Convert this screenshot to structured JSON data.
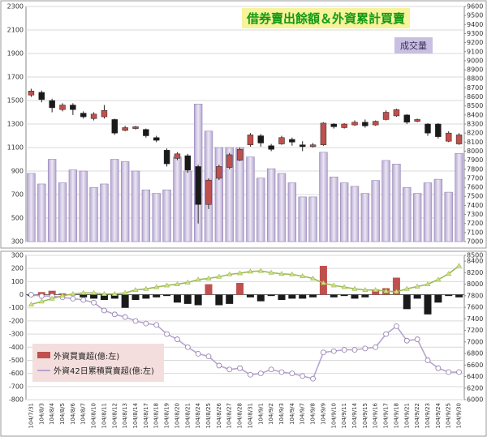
{
  "chart_data": [
    {
      "type": "candlestick",
      "title": "借券賣出餘額＆外資累計買賣",
      "annotation": "成交量",
      "volume": {
        "color": "#cdc2e0",
        "values": [
          880,
          790,
          1000,
          800,
          910,
          900,
          760,
          790,
          1000,
          980,
          900,
          740,
          710,
          740,
          1020,
          900,
          1470,
          1240,
          1100,
          1100,
          1100,
          1020,
          840,
          920,
          880,
          800,
          680,
          680,
          1060,
          850,
          800,
          770,
          710,
          820,
          990,
          960,
          760,
          710,
          800,
          830,
          720,
          1050
        ]
      },
      "candles": {
        "axis": "y2",
        "up_color": "#c0504d",
        "down_color": "#1a1a1a",
        "open": [
          8620,
          8650,
          8560,
          8460,
          8510,
          8420,
          8360,
          8380,
          8350,
          8230,
          8250,
          8240,
          8150,
          8010,
          7920,
          7950,
          7830,
          7410,
          7700,
          7820,
          7900,
          8070,
          8170,
          8060,
          8080,
          8130,
          8070,
          8050,
          8070,
          8300,
          8260,
          8290,
          8320,
          8290,
          8350,
          8390,
          8400,
          8330,
          8300,
          8300,
          8110,
          8080
        ],
        "high": [
          8690,
          8670,
          8580,
          8530,
          8530,
          8440,
          8430,
          8510,
          8360,
          8280,
          8280,
          8250,
          8170,
          8030,
          7990,
          7970,
          7850,
          7700,
          7850,
          7980,
          8040,
          8200,
          8190,
          8080,
          8170,
          8150,
          8110,
          8090,
          8320,
          8310,
          8310,
          8340,
          8350,
          8340,
          8450,
          8470,
          8410,
          8360,
          8310,
          8310,
          8220,
          8200
        ],
        "low": [
          8600,
          8540,
          8430,
          8440,
          8400,
          8360,
          8340,
          8360,
          8180,
          8220,
          8240,
          8150,
          8100,
          7830,
          7900,
          7760,
          7200,
          7360,
          7680,
          7800,
          7890,
          8050,
          8050,
          8000,
          8070,
          8060,
          8000,
          8040,
          8060,
          8250,
          8250,
          8280,
          8260,
          8280,
          8340,
          8380,
          8300,
          8320,
          8170,
          8140,
          8100,
          8070
        ],
        "close": [
          8665,
          8570,
          8480,
          8510,
          8460,
          8380,
          8410,
          8450,
          8200,
          8260,
          8270,
          8170,
          8120,
          7860,
          7970,
          7790,
          7410,
          7680,
          7830,
          7960,
          8020,
          8180,
          8090,
          8020,
          8150,
          8100,
          8050,
          8070,
          8310,
          8270,
          8300,
          8320,
          8280,
          8330,
          8430,
          8460,
          8320,
          8350,
          8200,
          8160,
          8200,
          8180
        ]
      },
      "ylim": [
        300,
        2300
      ],
      "yticks": [
        300,
        500,
        700,
        900,
        1100,
        1300,
        1500,
        1700,
        1900,
        2100,
        2300
      ],
      "y2lim": [
        7000,
        9600
      ],
      "y2ticks": [
        7000,
        7100,
        7200,
        7300,
        7400,
        7500,
        7600,
        7700,
        7800,
        7900,
        8000,
        8100,
        8200,
        8300,
        8400,
        8500,
        8600,
        8700,
        8800,
        8900,
        9000,
        9100,
        9200,
        9300,
        9400,
        9500,
        9600
      ],
      "grid": true
    },
    {
      "type": "combo",
      "categories": [
        "104/7/31",
        "104/8/3",
        "104/8/4",
        "104/8/5",
        "104/8/6",
        "104/8/7",
        "104/8/10",
        "104/8/11",
        "104/8/12",
        "104/8/13",
        "104/8/14",
        "104/8/17",
        "104/8/18",
        "104/8/19",
        "104/8/20",
        "104/8/21",
        "104/8/24",
        "104/8/25",
        "104/8/26",
        "104/8/27",
        "104/8/28",
        "104/8/31",
        "104/9/1",
        "104/9/2",
        "104/9/3",
        "104/9/4",
        "104/9/7",
        "104/9/8",
        "104/9/9",
        "104/9/10",
        "104/9/11",
        "104/9/14",
        "104/9/15",
        "104/9/16",
        "104/9/17",
        "104/9/18",
        "104/9/21",
        "104/9/22",
        "104/9/23",
        "104/9/24",
        "104/9/25",
        "104/9/30"
      ],
      "series": [
        {
          "name": "外資買賣超(億:左)",
          "kind": "bar",
          "color": "#c0504d",
          "negative_color": "#1a1a1a",
          "values": [
            -10,
            20,
            30,
            10,
            0,
            -20,
            -30,
            -40,
            -30,
            -100,
            -40,
            -30,
            -20,
            -10,
            -60,
            -70,
            -80,
            80,
            -80,
            -70,
            90,
            -20,
            -50,
            -10,
            -40,
            -30,
            -30,
            -20,
            220,
            -20,
            -10,
            -30,
            -20,
            40,
            50,
            130,
            -110,
            -30,
            -150,
            -60,
            -10,
            -20
          ]
        },
        {
          "name": "外資42日累積買賣超(億:左)",
          "kind": "line",
          "marker": "circle",
          "color": "#b8a4cf",
          "values": [
            0,
            -10,
            -10,
            -20,
            -30,
            -40,
            -60,
            -120,
            -150,
            -170,
            -200,
            -220,
            -230,
            -300,
            -340,
            -400,
            -450,
            -470,
            -540,
            -570,
            -560,
            -610,
            -600,
            -570,
            -590,
            -600,
            -620,
            -640,
            -440,
            -430,
            -420,
            -420,
            -410,
            -400,
            -300,
            -240,
            -350,
            -340,
            -500,
            -560,
            -590,
            -590
          ]
        },
        {
          "kind": "line",
          "marker": "triangle",
          "axis": "y2",
          "color": "#9bbb59",
          "values": [
            7650,
            7700,
            7750,
            7800,
            7830,
            7850,
            7850,
            7830,
            7830,
            7850,
            7900,
            7920,
            7950,
            7980,
            8000,
            8030,
            8080,
            8100,
            8130,
            8170,
            8190,
            8220,
            8230,
            8200,
            8180,
            8170,
            8140,
            8100,
            8020,
            7980,
            7950,
            7920,
            7900,
            7900,
            7880,
            7870,
            7920,
            7960,
            8000,
            8080,
            8180,
            8320
          ]
        }
      ],
      "ylim": [
        -800,
        300
      ],
      "yticks": [
        -800,
        -700,
        -600,
        -500,
        -400,
        -300,
        -200,
        -100,
        0,
        100,
        200,
        300
      ],
      "y2lim": [
        6000,
        8500
      ],
      "y2ticks": [
        6000,
        6200,
        6400,
        6600,
        6800,
        7000,
        7200,
        7400,
        7600,
        7800,
        8000,
        8200,
        8400,
        8500
      ],
      "grid": true
    }
  ]
}
